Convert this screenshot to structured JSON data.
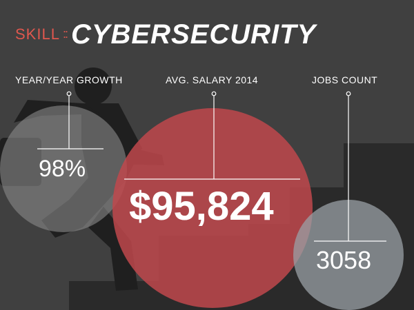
{
  "header": {
    "skill_label": "SKILL",
    "separator": "::",
    "title": "CYBERSECURITY"
  },
  "metrics": [
    {
      "label": "YEAR/YEAR GROWTH",
      "value": "98%"
    },
    {
      "label": "AVG. SALARY 2014",
      "value": "$95,824"
    },
    {
      "label": "JOBS COUNT",
      "value": "3058"
    }
  ],
  "colors": {
    "background": "#404040",
    "accent_red": "#e0574e",
    "salary_circle": "#c0484c",
    "growth_circle": "#8a8a8a",
    "jobs_circle": "#9aa0a6",
    "text": "#ffffff"
  }
}
